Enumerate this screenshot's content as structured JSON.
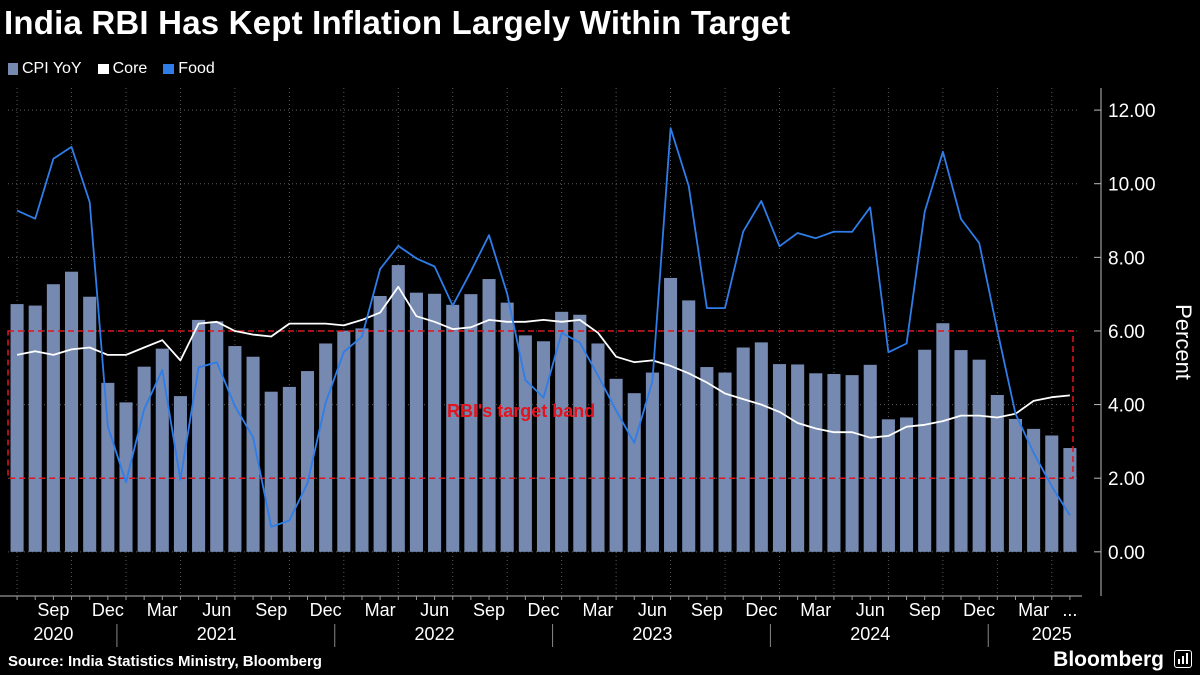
{
  "title": "India RBI Has Kept Inflation Largely Within Target",
  "legend": [
    {
      "label": "CPI YoY",
      "color": "#7589b1"
    },
    {
      "label": "Core",
      "color": "#ffffff"
    },
    {
      "label": "Food",
      "color": "#2e7de9"
    }
  ],
  "source": "Source: India Statistics Ministry, Bloomberg",
  "brand": "Bloomberg",
  "chart_data": {
    "type": "bar",
    "title": "India RBI Has Kept Inflation Largely Within Target",
    "ylabel": "Percent",
    "ylim": [
      -1.2,
      12.6
    ],
    "yticks": [
      0,
      2,
      4,
      6,
      8,
      10,
      12
    ],
    "ytick_labels": [
      "0.00",
      "2.00",
      "4.00",
      "6.00",
      "8.00",
      "10.00",
      "12.00"
    ],
    "x_start": "2020-07",
    "x_months": 59,
    "month_labels": [
      {
        "i": 2,
        "label": "Sep"
      },
      {
        "i": 5,
        "label": "Dec"
      },
      {
        "i": 8,
        "label": "Mar"
      },
      {
        "i": 11,
        "label": "Jun"
      },
      {
        "i": 14,
        "label": "Sep"
      },
      {
        "i": 17,
        "label": "Dec"
      },
      {
        "i": 20,
        "label": "Mar"
      },
      {
        "i": 23,
        "label": "Jun"
      },
      {
        "i": 26,
        "label": "Sep"
      },
      {
        "i": 29,
        "label": "Dec"
      },
      {
        "i": 32,
        "label": "Mar"
      },
      {
        "i": 35,
        "label": "Jun"
      },
      {
        "i": 38,
        "label": "Sep"
      },
      {
        "i": 41,
        "label": "Dec"
      },
      {
        "i": 44,
        "label": "Mar"
      },
      {
        "i": 47,
        "label": "Jun"
      },
      {
        "i": 50,
        "label": "Sep"
      },
      {
        "i": 53,
        "label": "Dec"
      },
      {
        "i": 56,
        "label": "Mar"
      },
      {
        "i": 58,
        "label": "..."
      }
    ],
    "year_labels": [
      {
        "i": 2,
        "label": "2020"
      },
      {
        "i": 11,
        "label": "2021"
      },
      {
        "i": 23,
        "label": "2022"
      },
      {
        "i": 35,
        "label": "2023"
      },
      {
        "i": 47,
        "label": "2024"
      },
      {
        "i": 57,
        "label": "2025"
      }
    ],
    "year_boundaries": [
      5.5,
      17.5,
      29.5,
      41.5,
      53.5
    ],
    "series": [
      {
        "name": "CPI YoY",
        "type": "bar",
        "color": "#7589b1",
        "values": [
          6.73,
          6.69,
          7.27,
          7.61,
          6.93,
          4.59,
          4.06,
          5.03,
          5.52,
          4.23,
          6.3,
          6.26,
          5.59,
          5.3,
          4.35,
          4.48,
          4.91,
          5.66,
          6.01,
          6.07,
          6.95,
          7.79,
          7.04,
          7.01,
          6.71,
          7.0,
          7.41,
          6.77,
          5.88,
          5.72,
          6.52,
          6.44,
          5.66,
          4.7,
          4.31,
          4.87,
          7.44,
          6.83,
          5.02,
          4.87,
          5.55,
          5.69,
          5.1,
          5.09,
          4.85,
          4.83,
          4.8,
          5.08,
          3.6,
          3.65,
          5.49,
          6.21,
          5.48,
          5.22,
          4.26,
          3.61,
          3.34,
          3.16,
          2.82
        ]
      },
      {
        "name": "Core",
        "type": "line",
        "color": "#ffffff",
        "values": [
          5.35,
          5.45,
          5.35,
          5.5,
          5.55,
          5.35,
          5.35,
          5.55,
          5.75,
          5.2,
          6.2,
          6.25,
          6.0,
          5.9,
          5.85,
          6.2,
          6.2,
          6.2,
          6.15,
          6.3,
          6.5,
          7.2,
          6.4,
          6.25,
          6.05,
          6.1,
          6.3,
          6.25,
          6.25,
          6.3,
          6.25,
          6.3,
          5.95,
          5.3,
          5.15,
          5.2,
          5.05,
          4.85,
          4.6,
          4.3,
          4.15,
          4.0,
          3.8,
          3.5,
          3.35,
          3.25,
          3.25,
          3.1,
          3.15,
          3.4,
          3.45,
          3.55,
          3.7,
          3.7,
          3.65,
          3.75,
          4.1,
          4.2,
          4.25
        ]
      },
      {
        "name": "Food",
        "type": "line",
        "color": "#2e7de9",
        "values": [
          9.27,
          9.05,
          10.68,
          11.0,
          9.5,
          3.41,
          1.89,
          3.87,
          4.94,
          1.96,
          5.01,
          5.15,
          3.96,
          3.11,
          0.68,
          0.85,
          1.87,
          4.05,
          5.43,
          5.85,
          7.68,
          8.31,
          7.97,
          7.75,
          6.69,
          7.62,
          8.6,
          7.01,
          4.67,
          4.19,
          5.95,
          5.68,
          4.79,
          3.84,
          2.96,
          4.63,
          11.51,
          9.94,
          6.62,
          6.62,
          8.7,
          9.53,
          8.3,
          8.66,
          8.52,
          8.7,
          8.69,
          9.36,
          5.42,
          5.66,
          9.24,
          10.87,
          9.04,
          8.39,
          6.02,
          3.75,
          2.69,
          1.78,
          0.99
        ]
      }
    ],
    "annotations": [
      {
        "type": "band",
        "from": 2,
        "to": 6,
        "label": "RBI's target band",
        "color": "#e3141e"
      }
    ],
    "grid": true,
    "legend_position": "top-left"
  }
}
